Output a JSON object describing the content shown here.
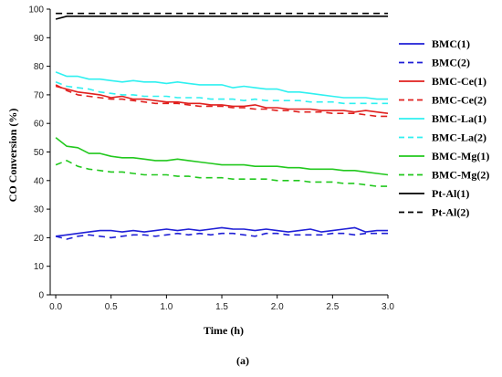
{
  "caption": "(a)",
  "chart_data": {
    "type": "line",
    "title": "",
    "xlabel": "Time (h)",
    "ylabel": "CO Conversion (%)",
    "xlim": [
      -0.05,
      3.0
    ],
    "ylim": [
      0,
      100
    ],
    "xticks": [
      "0.0",
      "0.5",
      "1.0",
      "1.5",
      "2.0",
      "2.5",
      "3.0"
    ],
    "yticks": [
      "0",
      "10",
      "20",
      "30",
      "40",
      "50",
      "60",
      "70",
      "80",
      "90",
      "100"
    ],
    "grid": false,
    "legend_position": "right",
    "x": [
      0.0,
      0.1,
      0.2,
      0.3,
      0.4,
      0.5,
      0.6,
      0.7,
      0.8,
      0.9,
      1.0,
      1.1,
      1.2,
      1.3,
      1.4,
      1.5,
      1.6,
      1.7,
      1.8,
      1.9,
      2.0,
      2.1,
      2.2,
      2.3,
      2.4,
      2.5,
      2.6,
      2.7,
      2.8,
      2.9,
      3.0
    ],
    "series": [
      {
        "name": "BMC(1)",
        "color": "#1f1fd6",
        "dash": "solid",
        "values": [
          20.5,
          21.0,
          21.5,
          22.0,
          22.5,
          22.5,
          22.0,
          22.5,
          22.0,
          22.5,
          23.0,
          22.5,
          23.0,
          22.5,
          23.0,
          23.5,
          23.0,
          23.0,
          22.5,
          23.0,
          22.5,
          22.0,
          22.5,
          23.0,
          22.0,
          22.5,
          23.0,
          23.5,
          22.0,
          22.5,
          22.5
        ]
      },
      {
        "name": "BMC(2)",
        "color": "#1f1fd6",
        "dash": "dashed",
        "values": [
          20.5,
          19.5,
          20.5,
          21.0,
          20.5,
          20.0,
          20.5,
          21.0,
          21.0,
          20.5,
          21.0,
          21.5,
          21.0,
          21.5,
          21.0,
          21.5,
          21.5,
          21.0,
          20.5,
          21.5,
          21.5,
          21.0,
          21.0,
          21.0,
          21.0,
          21.5,
          21.5,
          21.0,
          21.5,
          21.5,
          21.5
        ]
      },
      {
        "name": "BMC-Ce(1)",
        "color": "#e0201e",
        "dash": "solid",
        "values": [
          73.0,
          72.0,
          71.0,
          70.5,
          70.0,
          69.0,
          69.5,
          68.5,
          68.5,
          68.0,
          67.5,
          67.5,
          67.0,
          67.0,
          66.5,
          66.5,
          66.0,
          66.0,
          66.5,
          65.5,
          65.5,
          65.0,
          65.0,
          65.0,
          64.5,
          64.5,
          64.5,
          64.0,
          64.5,
          64.0,
          63.5
        ]
      },
      {
        "name": "BMC-Ce(2)",
        "color": "#e0201e",
        "dash": "dashed",
        "values": [
          73.5,
          71.5,
          70.0,
          69.5,
          69.0,
          68.5,
          68.5,
          68.0,
          67.5,
          67.0,
          67.0,
          67.0,
          66.5,
          66.0,
          66.0,
          66.0,
          65.5,
          65.5,
          65.0,
          65.0,
          64.5,
          64.5,
          64.0,
          64.0,
          64.0,
          63.5,
          63.5,
          63.5,
          63.0,
          62.5,
          62.5
        ]
      },
      {
        "name": "BMC-La(1)",
        "color": "#2ff0f0",
        "dash": "solid",
        "values": [
          78.0,
          76.5,
          76.5,
          75.5,
          75.5,
          75.0,
          74.5,
          75.0,
          74.5,
          74.5,
          74.0,
          74.5,
          74.0,
          73.5,
          73.5,
          73.5,
          72.5,
          73.0,
          72.5,
          72.0,
          72.0,
          71.0,
          71.0,
          70.5,
          70.0,
          69.5,
          69.0,
          69.0,
          69.0,
          68.5,
          68.5
        ]
      },
      {
        "name": "BMC-La(2)",
        "color": "#2ff0f0",
        "dash": "dashed",
        "values": [
          74.5,
          73.0,
          72.5,
          72.0,
          71.0,
          70.5,
          70.0,
          70.0,
          69.5,
          69.5,
          69.5,
          69.0,
          69.0,
          69.0,
          68.5,
          68.5,
          68.5,
          68.0,
          68.5,
          68.0,
          68.0,
          68.0,
          68.0,
          67.5,
          67.5,
          67.5,
          67.0,
          67.0,
          67.0,
          67.0,
          67.0
        ]
      },
      {
        "name": "BMC-Mg(1)",
        "color": "#22c81e",
        "dash": "solid",
        "values": [
          55.0,
          52.0,
          51.5,
          49.5,
          49.5,
          48.5,
          48.0,
          48.0,
          47.5,
          47.0,
          47.0,
          47.5,
          47.0,
          46.5,
          46.0,
          45.5,
          45.5,
          45.5,
          45.0,
          45.0,
          45.0,
          44.5,
          44.5,
          44.0,
          44.0,
          44.0,
          43.5,
          43.5,
          43.0,
          42.5,
          42.0
        ]
      },
      {
        "name": "BMC-Mg(2)",
        "color": "#22c81e",
        "dash": "dashed",
        "values": [
          45.5,
          47.0,
          45.0,
          44.0,
          43.5,
          43.0,
          43.0,
          42.5,
          42.0,
          42.0,
          42.0,
          41.5,
          41.5,
          41.0,
          41.0,
          41.0,
          40.5,
          40.5,
          40.5,
          40.5,
          40.0,
          40.0,
          40.0,
          39.5,
          39.5,
          39.5,
          39.0,
          39.0,
          38.5,
          38.0,
          38.0
        ]
      },
      {
        "name": "Pt-Al(1)",
        "color": "#000000",
        "dash": "solid",
        "values": [
          96.5,
          97.5,
          97.5,
          97.5,
          97.5,
          97.5,
          97.5,
          97.5,
          97.5,
          97.5,
          97.5,
          97.5,
          97.5,
          97.5,
          97.5,
          97.5,
          97.5,
          97.5,
          97.5,
          97.5,
          97.5,
          97.5,
          97.5,
          97.5,
          97.5,
          97.5,
          97.5,
          97.5,
          97.5,
          97.5,
          97.5
        ]
      },
      {
        "name": "Pt-Al(2)",
        "color": "#000000",
        "dash": "dashed",
        "values": [
          98.5,
          98.5,
          98.5,
          98.5,
          98.5,
          98.5,
          98.5,
          98.5,
          98.5,
          98.5,
          98.5,
          98.5,
          98.5,
          98.5,
          98.5,
          98.5,
          98.5,
          98.5,
          98.5,
          98.5,
          98.5,
          98.5,
          98.5,
          98.5,
          98.5,
          98.5,
          98.5,
          98.5,
          98.5,
          98.5,
          98.5
        ]
      }
    ]
  }
}
